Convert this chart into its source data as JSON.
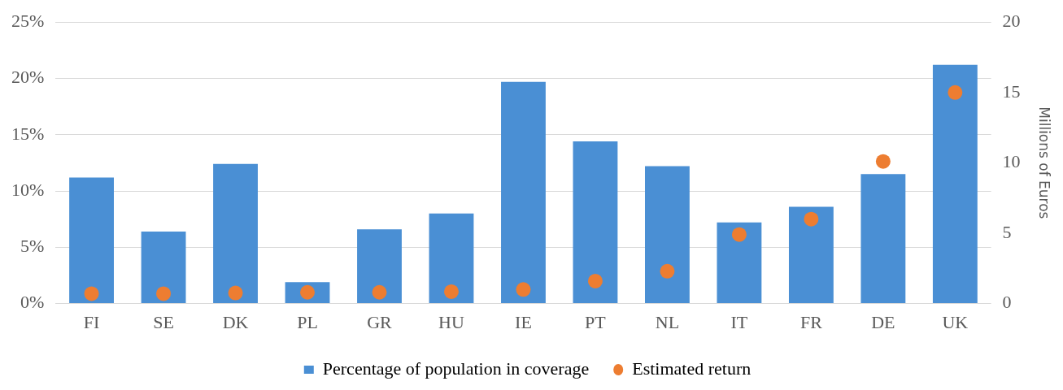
{
  "chart_data": {
    "type": "bar",
    "categories": [
      "FI",
      "SE",
      "DK",
      "PL",
      "GR",
      "HU",
      "IE",
      "PT",
      "NL",
      "IT",
      "FR",
      "DE",
      "UK"
    ],
    "series": [
      {
        "name": "Percentage of population in coverage",
        "color": "#4a8fd4",
        "values": [
          11.2,
          6.4,
          12.4,
          1.9,
          6.6,
          8.0,
          19.7,
          14.4,
          12.2,
          7.2,
          8.6,
          11.5,
          21.2
        ]
      },
      {
        "name": "Estimated return",
        "type": "scatter",
        "axis": "y2",
        "color": "#ed7d31",
        "values": [
          0.7,
          0.7,
          0.75,
          0.8,
          0.8,
          0.85,
          1.0,
          1.6,
          2.3,
          4.9,
          6.0,
          10.1,
          15.0
        ]
      }
    ],
    "ylim": [
      0,
      25
    ],
    "yticks": [
      {
        "value": 0,
        "label": "0%"
      },
      {
        "value": 5,
        "label": "5%"
      },
      {
        "value": 10,
        "label": "10%"
      },
      {
        "value": 15,
        "label": "15%"
      },
      {
        "value": 20,
        "label": "20%"
      },
      {
        "value": 25,
        "label": "25%"
      }
    ],
    "y2lim": [
      0,
      20
    ],
    "y2ticks": [
      0,
      5,
      10,
      15,
      20
    ],
    "y2label": "Millions of Euros",
    "grid": "y",
    "legend": "bottom",
    "marker": "circle"
  }
}
